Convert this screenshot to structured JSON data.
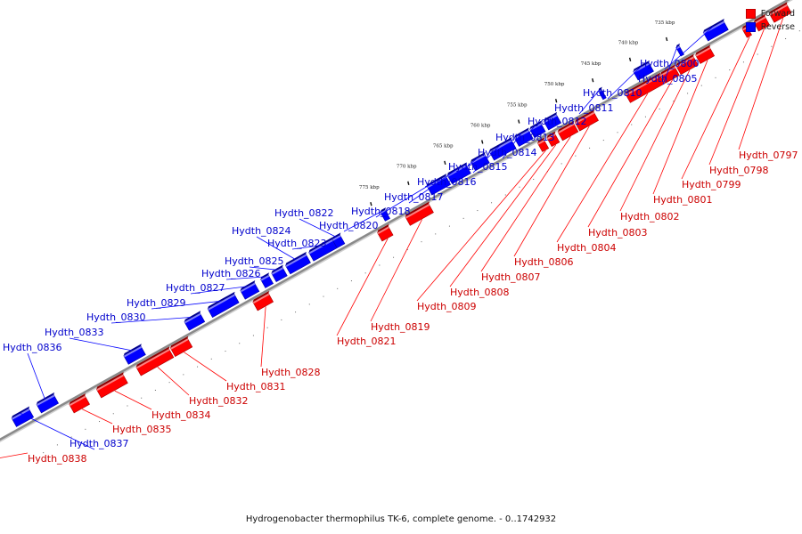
{
  "legend": {
    "forward_label": "Forward",
    "reverse_label": "Reverse",
    "forward_color": "#ff0000",
    "reverse_color": "#0000ff"
  },
  "caption": "Hydrogenobacter thermophilus TK-6, complete genome. - 0..1742932",
  "ticks": [
    "735 kbp",
    "740 kbp",
    "745 kbp",
    "750 kbp",
    "755 kbp",
    "760 kbp",
    "765 kbp",
    "770 kbp",
    "775 kbp"
  ],
  "genes": [
    {
      "name": "Hydth_0797",
      "strand": "forward"
    },
    {
      "name": "Hydth_0798",
      "strand": "forward"
    },
    {
      "name": "Hydth_0799",
      "strand": "forward"
    },
    {
      "name": "Hydth_0800",
      "strand": "reverse"
    },
    {
      "name": "Hydth_0801",
      "strand": "forward"
    },
    {
      "name": "Hydth_0802",
      "strand": "forward"
    },
    {
      "name": "Hydth_0803",
      "strand": "forward"
    },
    {
      "name": "Hydth_0804",
      "strand": "forward"
    },
    {
      "name": "Hydth_0805",
      "strand": "reverse"
    },
    {
      "name": "Hydth_0806",
      "strand": "forward"
    },
    {
      "name": "Hydth_0807",
      "strand": "forward"
    },
    {
      "name": "Hydth_0808",
      "strand": "forward"
    },
    {
      "name": "Hydth_0809",
      "strand": "forward"
    },
    {
      "name": "Hydth_0810",
      "strand": "reverse"
    },
    {
      "name": "Hydth_0811",
      "strand": "reverse"
    },
    {
      "name": "Hydth_0812",
      "strand": "reverse"
    },
    {
      "name": "Hydth_0813",
      "strand": "reverse"
    },
    {
      "name": "Hydth_0814",
      "strand": "reverse"
    },
    {
      "name": "Hydth_0815",
      "strand": "reverse"
    },
    {
      "name": "Hydth_0816",
      "strand": "reverse"
    },
    {
      "name": "Hydth_0817",
      "strand": "reverse"
    },
    {
      "name": "Hydth_0818",
      "strand": "reverse"
    },
    {
      "name": "Hydth_0819",
      "strand": "forward"
    },
    {
      "name": "Hydth_0820",
      "strand": "reverse"
    },
    {
      "name": "Hydth_0821",
      "strand": "forward"
    },
    {
      "name": "Hydth_0822",
      "strand": "reverse"
    },
    {
      "name": "Hydth_0823",
      "strand": "reverse"
    },
    {
      "name": "Hydth_0824",
      "strand": "reverse"
    },
    {
      "name": "Hydth_0825",
      "strand": "reverse"
    },
    {
      "name": "Hydth_0826",
      "strand": "reverse"
    },
    {
      "name": "Hydth_0827",
      "strand": "reverse"
    },
    {
      "name": "Hydth_0828",
      "strand": "forward"
    },
    {
      "name": "Hydth_0829",
      "strand": "reverse"
    },
    {
      "name": "Hydth_0830",
      "strand": "reverse"
    },
    {
      "name": "Hydth_0831",
      "strand": "forward"
    },
    {
      "name": "Hydth_0832",
      "strand": "forward"
    },
    {
      "name": "Hydth_0833",
      "strand": "reverse"
    },
    {
      "name": "Hydth_0834",
      "strand": "forward"
    },
    {
      "name": "Hydth_0835",
      "strand": "forward"
    },
    {
      "name": "Hydth_0836",
      "strand": "reverse"
    },
    {
      "name": "Hydth_0837",
      "strand": "reverse"
    },
    {
      "name": "Hydth_0838",
      "strand": "forward"
    }
  ]
}
